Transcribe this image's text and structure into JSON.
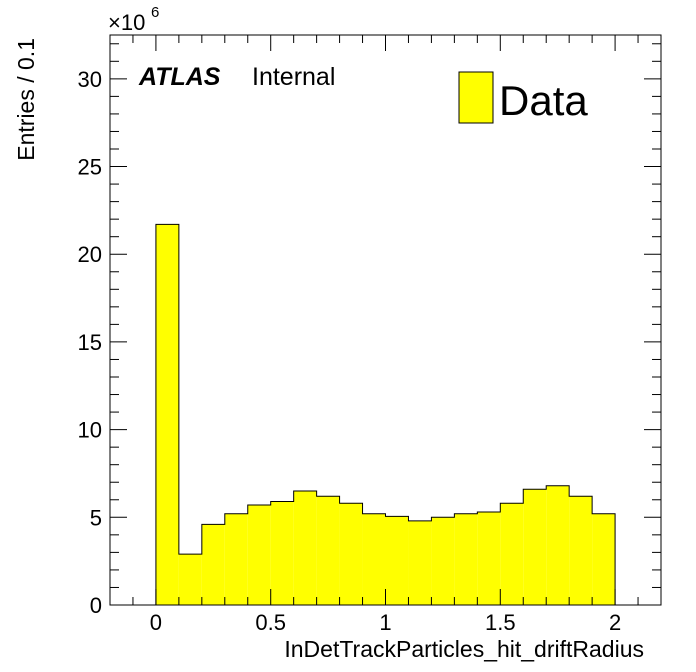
{
  "chart_data": {
    "type": "bar",
    "histogram": true,
    "bin_edges": [
      0,
      0.1,
      0.2,
      0.3,
      0.4,
      0.5,
      0.6,
      0.7,
      0.8,
      0.9,
      1.0,
      1.1,
      1.2,
      1.3,
      1.4,
      1.5,
      1.6,
      1.7,
      1.8,
      1.9,
      2.0
    ],
    "series": [
      {
        "name": "Data",
        "color": "#ffff00",
        "values": [
          21.7,
          2.9,
          4.6,
          5.2,
          5.7,
          5.9,
          6.5,
          6.2,
          5.8,
          5.2,
          5.05,
          4.8,
          5.0,
          5.2,
          5.3,
          5.8,
          6.6,
          6.8,
          6.2,
          5.2
        ]
      }
    ],
    "xlabel": "InDetTrackParticles_hit_driftRadius",
    "ylabel": "Entries / 0.1",
    "xlim": [
      -0.2,
      2.2
    ],
    "ylim": [
      0,
      32.5
    ],
    "x_ticks": [
      "0",
      "0.5",
      "1",
      "1.5",
      "2"
    ],
    "y_ticks": [
      "0",
      "5",
      "10",
      "15",
      "20",
      "25",
      "30"
    ],
    "y_multiplier": "×10",
    "y_multiplier_exp": "6",
    "annotation": {
      "atlas": "ATLAS",
      "label": "Internal"
    },
    "legend_position": "top-right",
    "grid": false,
    "bar_fill": "#ffff00",
    "bar_edge": "#000000"
  }
}
